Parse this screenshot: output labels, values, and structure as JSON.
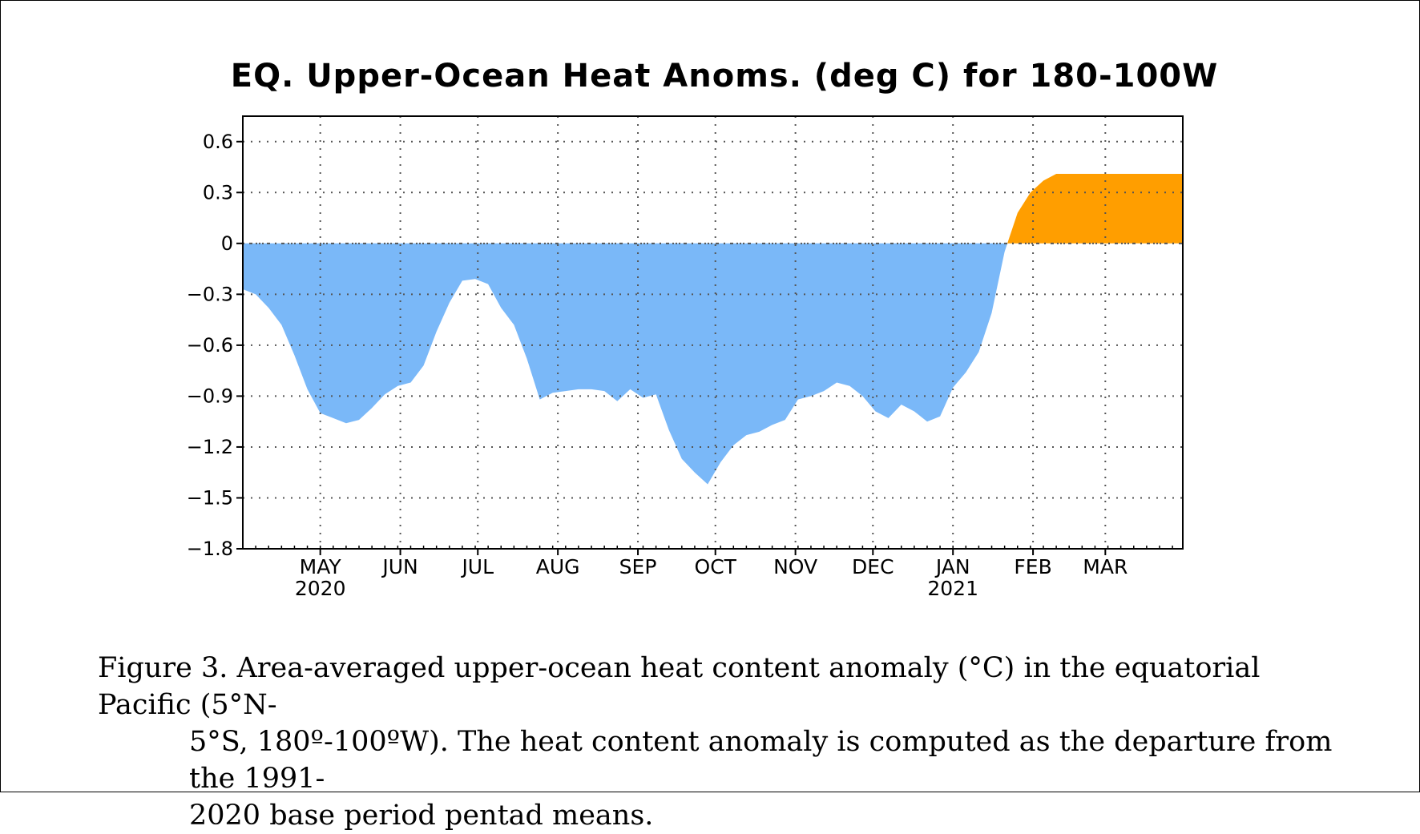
{
  "chart_data": {
    "type": "area",
    "title": "EQ. Upper-Ocean Heat Anoms. (deg C) for 180-100W",
    "xlabel": "",
    "ylabel": "",
    "ylim": [
      -1.8,
      0.75
    ],
    "yticks": [
      0.6,
      0.3,
      0,
      -0.3,
      -0.6,
      -0.9,
      -1.2,
      -1.5,
      -1.8
    ],
    "ytick_labels": [
      "0.6",
      "0.3",
      "0",
      "−0.3",
      "−0.6",
      "−0.9",
      "−1.2",
      "−1.5",
      "−1.8"
    ],
    "x_range": [
      "2020-04-01",
      "2021-03-31"
    ],
    "x_month_ticks": [
      {
        "date": "2020-05-01",
        "label": "MAY",
        "year": "2020"
      },
      {
        "date": "2020-06-01",
        "label": "JUN",
        "year": ""
      },
      {
        "date": "2020-07-01",
        "label": "JUL",
        "year": ""
      },
      {
        "date": "2020-08-01",
        "label": "AUG",
        "year": ""
      },
      {
        "date": "2020-09-01",
        "label": "SEP",
        "year": ""
      },
      {
        "date": "2020-10-01",
        "label": "OCT",
        "year": ""
      },
      {
        "date": "2020-11-01",
        "label": "NOV",
        "year": ""
      },
      {
        "date": "2020-12-01",
        "label": "DEC",
        "year": ""
      },
      {
        "date": "2021-01-01",
        "label": "JAN",
        "year": "2021"
      },
      {
        "date": "2021-02-01",
        "label": "FEB",
        "year": ""
      },
      {
        "date": "2021-03-01",
        "label": "MAR",
        "year": ""
      }
    ],
    "grid": true,
    "positive_color": "#ff9e00",
    "negative_color": "#7ab8f8",
    "series": [
      {
        "x": [
          "2020-04-01",
          "2020-04-06",
          "2020-04-11",
          "2020-04-16",
          "2020-04-21",
          "2020-04-26",
          "2020-05-01",
          "2020-05-06",
          "2020-05-11",
          "2020-05-16",
          "2020-05-21",
          "2020-05-26",
          "2020-05-31",
          "2020-06-05",
          "2020-06-10",
          "2020-06-15",
          "2020-06-20",
          "2020-06-25",
          "2020-06-30",
          "2020-07-05",
          "2020-07-10",
          "2020-07-15",
          "2020-07-20",
          "2020-07-25",
          "2020-07-30",
          "2020-08-04",
          "2020-08-09",
          "2020-08-14",
          "2020-08-19",
          "2020-08-24",
          "2020-08-29",
          "2020-09-03",
          "2020-09-08",
          "2020-09-13",
          "2020-09-18",
          "2020-09-23",
          "2020-09-28",
          "2020-10-03",
          "2020-10-08",
          "2020-10-13",
          "2020-10-18",
          "2020-10-23",
          "2020-10-28",
          "2020-11-02",
          "2020-11-07",
          "2020-11-12",
          "2020-11-17",
          "2020-11-22",
          "2020-11-27",
          "2020-12-02",
          "2020-12-07",
          "2020-12-12",
          "2020-12-17",
          "2020-12-22",
          "2020-12-27",
          "2021-01-01",
          "2021-01-06",
          "2021-01-11",
          "2021-01-16",
          "2021-01-21",
          "2021-01-26",
          "2021-01-31",
          "2021-02-05",
          "2021-02-10",
          "2021-02-15",
          "2021-02-20",
          "2021-02-25",
          "2021-03-02",
          "2021-03-07",
          "2021-03-12",
          "2021-03-17",
          "2021-03-22",
          "2021-03-27",
          "2021-03-31"
        ],
        "values": [
          -0.27,
          -0.3,
          -0.38,
          -0.48,
          -0.66,
          -0.86,
          -1.0,
          -1.03,
          -1.06,
          -1.04,
          -0.97,
          -0.89,
          -0.84,
          -0.82,
          -0.72,
          -0.52,
          -0.35,
          -0.22,
          -0.21,
          -0.24,
          -0.38,
          -0.48,
          -0.68,
          -0.92,
          -0.88,
          -0.87,
          -0.86,
          -0.86,
          -0.87,
          -0.93,
          -0.86,
          -0.91,
          -0.89,
          -1.1,
          -1.27,
          -1.35,
          -1.42,
          -1.29,
          -1.19,
          -1.13,
          -1.11,
          -1.07,
          -1.04,
          -0.92,
          -0.9,
          -0.87,
          -0.82,
          -0.84,
          -0.9,
          -0.99,
          -1.03,
          -0.95,
          -0.99,
          -1.05,
          -1.02,
          -0.85,
          -0.76,
          -0.64,
          -0.41,
          -0.05,
          0.18,
          0.3,
          0.37,
          0.41,
          0.41,
          0.41,
          0.41,
          0.41,
          0.41,
          0.41,
          0.41,
          0.41,
          0.41,
          0.41
        ]
      }
    ]
  },
  "caption": {
    "line1": "Figure  3. Area-averaged upper-ocean heat content anomaly  (°C) in the equatorial  Pacific (5°N-",
    "line2": "5°S, 180º-100ºW).  The heat content anomaly is computed as the departure from the 1991-",
    "line3": "2020 base period pentad means."
  }
}
